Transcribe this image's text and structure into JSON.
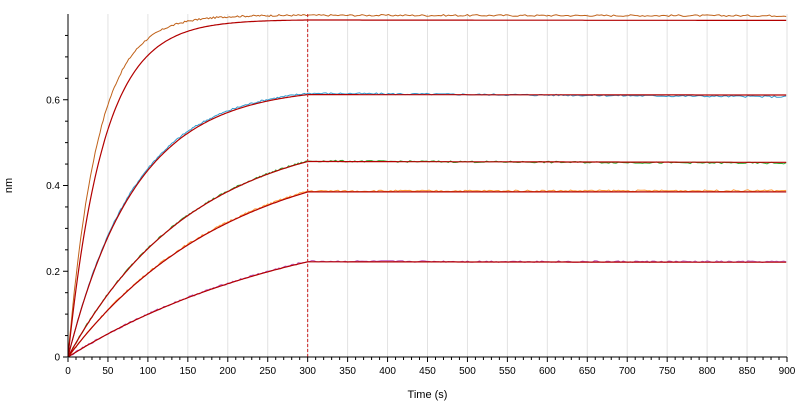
{
  "chart_data": {
    "type": "line",
    "title": "",
    "xlabel": "Time (s)",
    "ylabel": "nm",
    "xlim": [
      0,
      900
    ],
    "ylim": [
      0,
      0.8
    ],
    "x_ticks": [
      0,
      50,
      100,
      150,
      200,
      250,
      300,
      350,
      400,
      450,
      500,
      550,
      600,
      650,
      700,
      750,
      800,
      850,
      900
    ],
    "y_ticks": [
      0,
      0.2,
      0.4,
      0.6
    ],
    "grid": "vertical",
    "marker_line_x": 300,
    "marker_line_color": "#cc2222",
    "fit_color": "#b30000",
    "series": [
      {
        "color": "#c0621a",
        "association_end": 0.797,
        "dissociation_end": 0.796,
        "association_shape": 1.15
      },
      {
        "color": "#3399cc",
        "association_end": 0.615,
        "dissociation_end": 0.607,
        "association_shape": 1.0
      },
      {
        "color": "#33aa33",
        "association_end": 0.457,
        "dissociation_end": 0.452,
        "association_shape": 1.0
      },
      {
        "color": "#ff9933",
        "association_end": 0.387,
        "dissociation_end": 0.388,
        "association_shape": 1.0
      },
      {
        "color": "#bb55bb",
        "association_end": 0.223,
        "dissociation_end": 0.222,
        "association_shape": 1.0
      }
    ],
    "fits": [
      {
        "association_end": 0.786,
        "dissociation_end": 0.785,
        "association_shape": 1.0
      },
      {
        "association_end": 0.612,
        "dissociation_end": 0.611,
        "association_shape": 1.0
      },
      {
        "association_end": 0.456,
        "dissociation_end": 0.454,
        "association_shape": 1.0
      },
      {
        "association_end": 0.385,
        "dissociation_end": 0.385,
        "association_shape": 1.0
      },
      {
        "association_end": 0.222,
        "dissociation_end": 0.221,
        "association_shape": 1.0
      }
    ]
  }
}
